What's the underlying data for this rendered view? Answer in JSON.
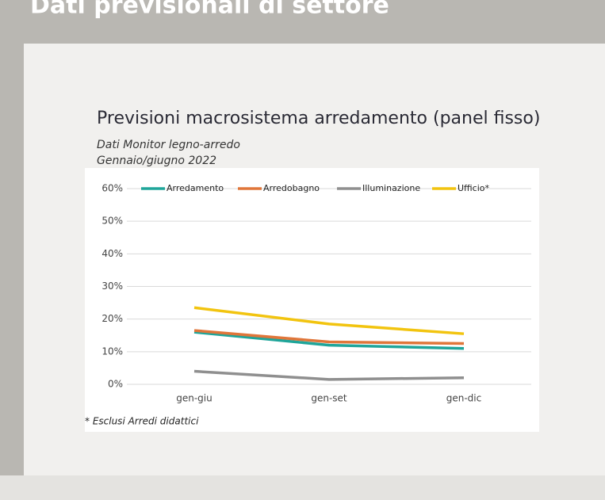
{
  "slide_title": "Dati previsionali di settore",
  "chart_data": {
    "type": "line",
    "title": "Previsioni macrosistema arredamento (panel fisso)",
    "subtitle": [
      "Dati Monitor legno-arredo",
      "Gennaio/giugno 2022"
    ],
    "note": "* Esclusi Arredi didattici",
    "categories": [
      "gen-giu",
      "gen-set",
      "gen-dic"
    ],
    "series": [
      {
        "name": "Arredamento",
        "color": "#1fa59a",
        "values": [
          16,
          12,
          11
        ]
      },
      {
        "name": "Arredobagno",
        "color": "#e0763a",
        "values": [
          16.5,
          13,
          12.5
        ]
      },
      {
        "name": "Illuminazione",
        "color": "#8f8f8f",
        "values": [
          4,
          1.5,
          2
        ]
      },
      {
        "name": "Ufficio*",
        "color": "#f2c40f",
        "values": [
          23.5,
          18.5,
          15.5
        ]
      }
    ],
    "ylim": [
      0,
      60
    ],
    "yticks": [
      {
        "value": 0,
        "label": "0%"
      },
      {
        "value": 10,
        "label": "10%"
      },
      {
        "value": 20,
        "label": "20%"
      },
      {
        "value": 30,
        "label": "30%"
      },
      {
        "value": 40,
        "label": "40%"
      },
      {
        "value": 50,
        "label": "50%"
      },
      {
        "value": 60,
        "label": "60%"
      }
    ],
    "grid": true,
    "legend": "top"
  }
}
